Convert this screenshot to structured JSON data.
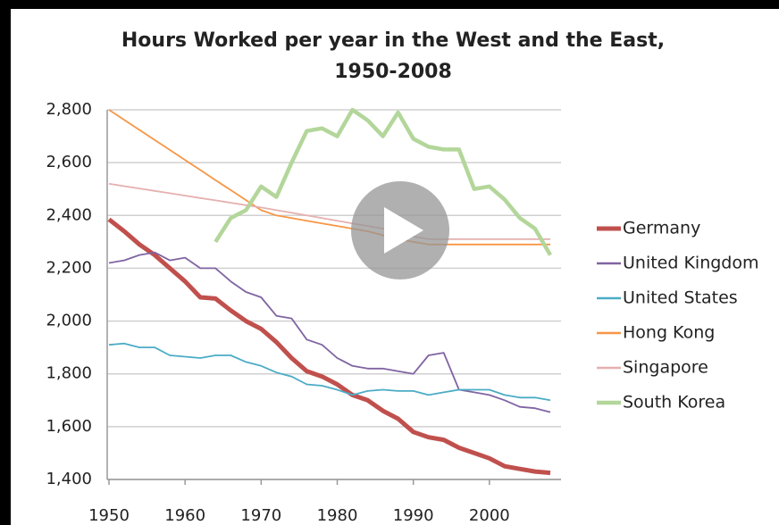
{
  "chart_data": {
    "type": "line",
    "title": [
      "Hours Worked per year in the West and the East,",
      "1950-2008"
    ],
    "x": [
      1950,
      1952,
      1954,
      1956,
      1958,
      1960,
      1962,
      1964,
      1966,
      1968,
      1970,
      1972,
      1974,
      1976,
      1978,
      1980,
      1982,
      1984,
      1986,
      1988,
      1990,
      1992,
      1994,
      1996,
      1998,
      2000,
      2002,
      2004,
      2006,
      2008
    ],
    "xlim": [
      1950,
      2010
    ],
    "xticks": [
      1950,
      1960,
      1970,
      1980,
      1990,
      2000
    ],
    "ylim": [
      1400,
      2800
    ],
    "yticks": [
      {
        "value": 1400,
        "label": "1,400"
      },
      {
        "value": 1600,
        "label": "1,600"
      },
      {
        "value": 1800,
        "label": "1,800"
      },
      {
        "value": 2000,
        "label": "2,000"
      },
      {
        "value": 2200,
        "label": "2,200"
      },
      {
        "value": 2400,
        "label": "2,400"
      },
      {
        "value": 2600,
        "label": "2,600"
      },
      {
        "value": 2800,
        "label": "2,800"
      }
    ],
    "grid": true,
    "legend": "right",
    "series": [
      {
        "name": "Germany",
        "color": "#c0504d",
        "values": [
          2385,
          2340,
          2290,
          2250,
          2200,
          2150,
          2090,
          2085,
          2040,
          2000,
          1970,
          1920,
          1860,
          1810,
          1790,
          1760,
          1720,
          1700,
          1660,
          1630,
          1580,
          1560,
          1550,
          1520,
          1500,
          1480,
          1450,
          1440,
          1430,
          1425
        ]
      },
      {
        "name": "United Kingdom",
        "color": "#8064a2",
        "values": [
          2220,
          2230,
          2250,
          2260,
          2230,
          2240,
          2200,
          2200,
          2150,
          2110,
          2090,
          2020,
          2010,
          1930,
          1910,
          1860,
          1830,
          1820,
          1820,
          1810,
          1800,
          1870,
          1880,
          1740,
          1730,
          1720,
          1700,
          1675,
          1670,
          1655
        ]
      },
      {
        "name": "United States",
        "color": "#4bacc6",
        "values": [
          1910,
          1915,
          1900,
          1900,
          1870,
          1865,
          1860,
          1870,
          1870,
          1845,
          1830,
          1805,
          1790,
          1760,
          1755,
          1740,
          1720,
          1735,
          1740,
          1735,
          1735,
          1720,
          1730,
          1740,
          1740,
          1740,
          1720,
          1710,
          1710,
          1700
        ]
      },
      {
        "name": "Hong Kong",
        "color": "#f79646",
        "values": [
          2800,
          2762,
          2724,
          2686,
          2648,
          2610,
          2572,
          2534,
          2496,
          2458,
          2420,
          2400,
          2390,
          2380,
          2370,
          2360,
          2350,
          2340,
          2325,
          2310,
          2300,
          2290,
          2290,
          2290,
          2290,
          2290,
          2290,
          2290,
          2290,
          2290
        ]
      },
      {
        "name": "Singapore",
        "color": "#e6b0b0",
        "values": [
          2520,
          2511,
          2502,
          2493,
          2484,
          2475,
          2466,
          2457,
          2448,
          2439,
          2430,
          2420,
          2410,
          2400,
          2390,
          2380,
          2370,
          2360,
          2350,
          2340,
          2320,
          2310,
          2310,
          2310,
          2310,
          2310,
          2310,
          2310,
          2310,
          2310
        ]
      },
      {
        "name": "South Korea",
        "color": "#b3d69a",
        "values": [
          null,
          null,
          null,
          null,
          null,
          null,
          null,
          2300,
          2390,
          2420,
          2510,
          2470,
          2600,
          2720,
          2730,
          2700,
          2800,
          2760,
          2700,
          2790,
          2690,
          2660,
          2650,
          2650,
          2500,
          2510,
          2460,
          2390,
          2350,
          2250
        ]
      }
    ]
  }
}
